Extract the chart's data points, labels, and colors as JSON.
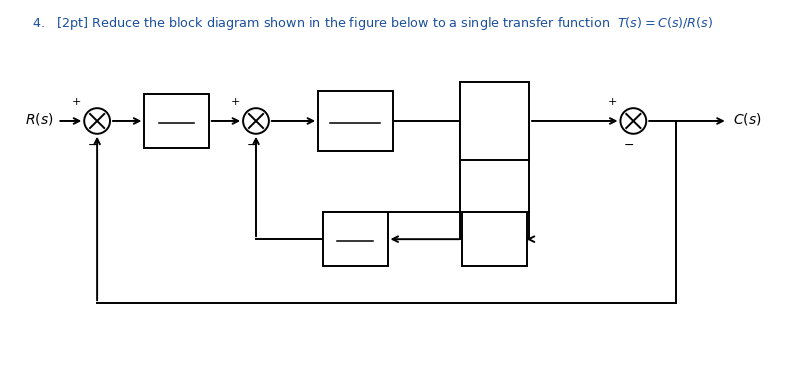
{
  "bg_color": "#ffffff",
  "line_color": "#000000",
  "blue_color": "#1a4fa0",
  "fig_width": 7.95,
  "fig_height": 3.7,
  "dpi": 100
}
